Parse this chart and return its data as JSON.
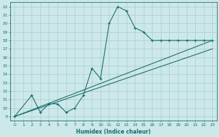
{
  "xlabel": "Humidex (Indice chaleur)",
  "bg_color": "#cce8e8",
  "line_color": "#1a6b6b",
  "grid_color": "#aacccc",
  "xlim": [
    -0.5,
    23.5
  ],
  "ylim": [
    8.5,
    22.5
  ],
  "xticks": [
    0,
    1,
    2,
    3,
    4,
    5,
    6,
    7,
    8,
    9,
    10,
    11,
    12,
    13,
    14,
    15,
    16,
    17,
    18,
    19,
    20,
    21,
    22,
    23
  ],
  "yticks": [
    9,
    10,
    11,
    12,
    13,
    14,
    15,
    16,
    17,
    18,
    19,
    20,
    21,
    22
  ],
  "curve1_x": [
    0,
    2,
    3,
    4,
    5,
    6,
    7,
    8,
    9,
    10,
    11,
    12,
    13,
    14,
    15,
    16,
    17,
    18,
    19,
    20,
    21,
    22,
    23
  ],
  "curve1_y": [
    9,
    11.5,
    9.5,
    10.5,
    10.5,
    9.5,
    10.0,
    11.5,
    14.7,
    13.5,
    20.0,
    22.0,
    21.5,
    19.5,
    19.0,
    18.0,
    18.0,
    18.0,
    18.0,
    18.0,
    18.0,
    18.0,
    18.0
  ],
  "curve2_x": [
    0,
    23
  ],
  "curve2_y": [
    9,
    18
  ],
  "curve3_x": [
    0,
    23
  ],
  "curve3_y": [
    9,
    17
  ]
}
